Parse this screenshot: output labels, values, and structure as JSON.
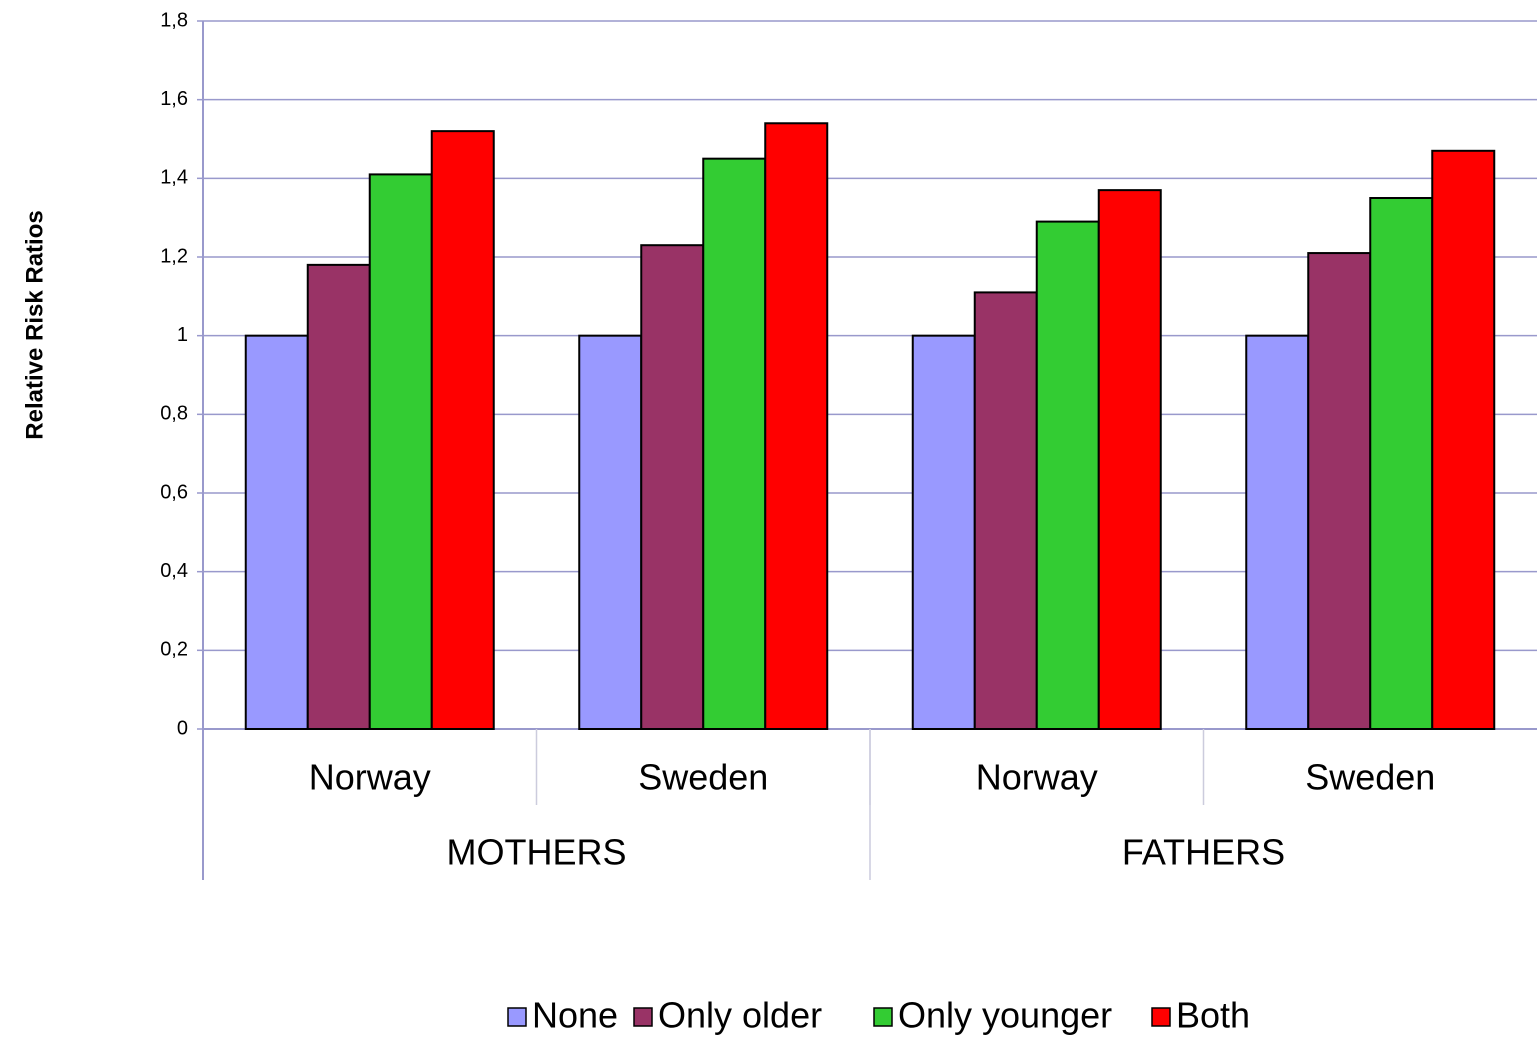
{
  "chart_data": {
    "type": "bar",
    "y_label": "Relative Risk Ratios",
    "categories": [
      "Norway",
      "Sweden",
      "Norway",
      "Sweden"
    ],
    "groups": [
      "MOTHERS",
      "FATHERS"
    ],
    "series": [
      {
        "name": "None",
        "color": "#9999ff",
        "values": [
          1,
          1,
          1,
          1
        ]
      },
      {
        "name": "Only older",
        "color": "#993366",
        "values": [
          1.18,
          1.23,
          1.11,
          1.21
        ]
      },
      {
        "name": "Only younger",
        "color": "#33cc33",
        "values": [
          1.41,
          1.45,
          1.29,
          1.35
        ]
      },
      {
        "name": "Both",
        "color": "#ff0000",
        "values": [
          1.52,
          1.54,
          1.37,
          1.47
        ]
      }
    ],
    "ylim": [
      0,
      1.8
    ],
    "yticks": [
      0,
      {
        "value": 0.2,
        "label": "0,2"
      },
      {
        "value": 0.4,
        "label": "0,4"
      },
      {
        "value": 0.6,
        "label": "0,6"
      },
      {
        "value": 0.8,
        "label": "0,8"
      },
      1,
      {
        "value": 1.2,
        "label": "1,2"
      },
      {
        "value": 1.4,
        "label": "1,4"
      },
      {
        "value": 1.6,
        "label": "1,6"
      },
      {
        "value": 1.8,
        "label": "1,8"
      }
    ],
    "grid": true,
    "legend": "bottom"
  }
}
